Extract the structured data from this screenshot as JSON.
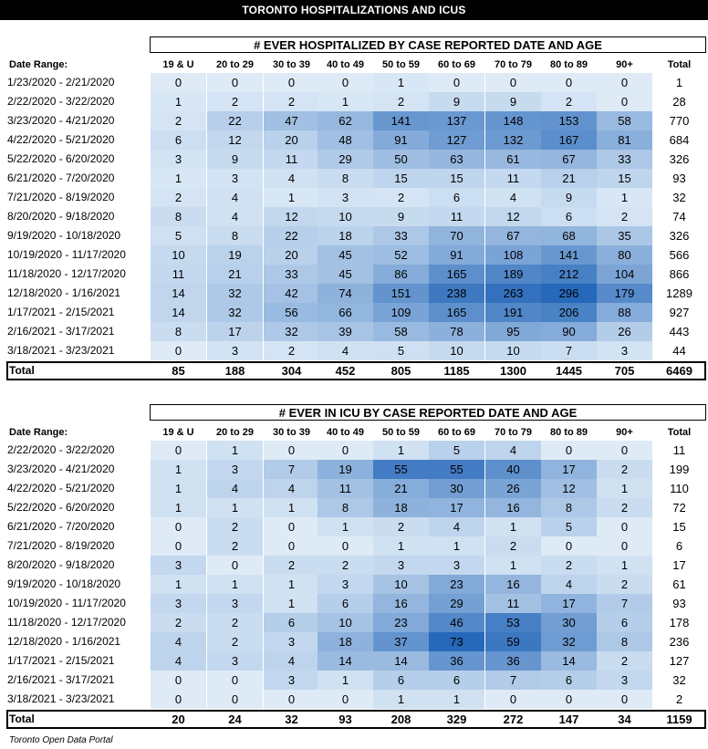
{
  "banner": "TORONTO HOSPITALIZATIONS AND ICUS",
  "source": "Toronto Open Data Portal",
  "chart_data": [
    {
      "type": "heatmap",
      "title": "# EVER HOSPITALIZED BY CASE REPORTED DATE AND AGE",
      "row_header": "Date Range:",
      "columns": [
        "19 & U",
        "20 to 29",
        "30 to 39",
        "40 to 49",
        "50 to 59",
        "60 to 69",
        "70 to 79",
        "80 to 89",
        "90+"
      ],
      "total_header": "Total",
      "rows": [
        {
          "label": "1/23/2020 - 2/21/2020",
          "values": [
            0,
            0,
            0,
            0,
            1,
            0,
            0,
            0,
            0
          ],
          "total": 1
        },
        {
          "label": "2/22/2020 - 3/22/2020",
          "values": [
            1,
            2,
            2,
            1,
            2,
            9,
            9,
            2,
            0
          ],
          "total": 28
        },
        {
          "label": "3/23/2020 - 4/21/2020",
          "values": [
            2,
            22,
            47,
            62,
            141,
            137,
            148,
            153,
            58
          ],
          "total": 770
        },
        {
          "label": "4/22/2020 - 5/21/2020",
          "values": [
            6,
            12,
            20,
            48,
            91,
            127,
            132,
            167,
            81
          ],
          "total": 684
        },
        {
          "label": "5/22/2020 - 6/20/2020",
          "values": [
            3,
            9,
            11,
            29,
            50,
            63,
            61,
            67,
            33
          ],
          "total": 326
        },
        {
          "label": "6/21/2020 - 7/20/2020",
          "values": [
            1,
            3,
            4,
            8,
            15,
            15,
            11,
            21,
            15
          ],
          "total": 93
        },
        {
          "label": "7/21/2020 - 8/19/2020",
          "values": [
            2,
            4,
            1,
            3,
            2,
            6,
            4,
            9,
            1
          ],
          "total": 32
        },
        {
          "label": "8/20/2020 - 9/18/2020",
          "values": [
            8,
            4,
            12,
            10,
            9,
            11,
            12,
            6,
            2
          ],
          "total": 74
        },
        {
          "label": "9/19/2020 - 10/18/2020",
          "values": [
            5,
            8,
            22,
            18,
            33,
            70,
            67,
            68,
            35
          ],
          "total": 326
        },
        {
          "label": "10/19/2020 - 11/17/2020",
          "values": [
            10,
            19,
            20,
            45,
            52,
            91,
            108,
            141,
            80
          ],
          "total": 566
        },
        {
          "label": "11/18/2020 - 12/17/2020",
          "values": [
            11,
            21,
            33,
            45,
            86,
            165,
            189,
            212,
            104
          ],
          "total": 866
        },
        {
          "label": "12/18/2020 - 1/16/2021",
          "values": [
            14,
            32,
            42,
            74,
            151,
            238,
            263,
            296,
            179
          ],
          "total": 1289
        },
        {
          "label": "1/17/2021 - 2/15/2021",
          "values": [
            14,
            32,
            56,
            66,
            109,
            165,
            191,
            206,
            88
          ],
          "total": 927
        },
        {
          "label": "2/16/2021 - 3/17/2021",
          "values": [
            8,
            17,
            32,
            39,
            58,
            78,
            95,
            90,
            26
          ],
          "total": 443
        },
        {
          "label": "3/18/2021 - 3/23/2021",
          "values": [
            0,
            3,
            2,
            4,
            5,
            10,
            10,
            7,
            3
          ],
          "total": 44
        }
      ],
      "totals": {
        "label": "Total",
        "values": [
          85,
          188,
          304,
          452,
          805,
          1185,
          1300,
          1445,
          705
        ],
        "total": 6469
      }
    },
    {
      "type": "heatmap",
      "title": "# EVER IN ICU BY CASE REPORTED DATE AND AGE",
      "row_header": "Date Range:",
      "columns": [
        "19 & U",
        "20 to 29",
        "30 to 39",
        "40 to 49",
        "50 to 59",
        "60 to 69",
        "70 to 79",
        "80 to 89",
        "90+"
      ],
      "total_header": "Total",
      "rows": [
        {
          "label": "2/22/2020 - 3/22/2020",
          "values": [
            0,
            1,
            0,
            0,
            1,
            5,
            4,
            0,
            0
          ],
          "total": 11
        },
        {
          "label": "3/23/2020 - 4/21/2020",
          "values": [
            1,
            3,
            7,
            19,
            55,
            55,
            40,
            17,
            2
          ],
          "total": 199
        },
        {
          "label": "4/22/2020 - 5/21/2020",
          "values": [
            1,
            4,
            4,
            11,
            21,
            30,
            26,
            12,
            1
          ],
          "total": 110
        },
        {
          "label": "5/22/2020 - 6/20/2020",
          "values": [
            1,
            1,
            1,
            8,
            18,
            17,
            16,
            8,
            2
          ],
          "total": 72
        },
        {
          "label": "6/21/2020 - 7/20/2020",
          "values": [
            0,
            2,
            0,
            1,
            2,
            4,
            1,
            5,
            0
          ],
          "total": 15
        },
        {
          "label": "7/21/2020 - 8/19/2020",
          "values": [
            0,
            2,
            0,
            0,
            1,
            1,
            2,
            0,
            0
          ],
          "total": 6
        },
        {
          "label": "8/20/2020 - 9/18/2020",
          "values": [
            3,
            0,
            2,
            2,
            3,
            3,
            1,
            2,
            1
          ],
          "total": 17
        },
        {
          "label": "9/19/2020 - 10/18/2020",
          "values": [
            1,
            1,
            1,
            3,
            10,
            23,
            16,
            4,
            2
          ],
          "total": 61
        },
        {
          "label": "10/19/2020 - 11/17/2020",
          "values": [
            3,
            3,
            1,
            6,
            16,
            29,
            11,
            17,
            7
          ],
          "total": 93
        },
        {
          "label": "11/18/2020 - 12/17/2020",
          "values": [
            2,
            2,
            6,
            10,
            23,
            46,
            53,
            30,
            6
          ],
          "total": 178
        },
        {
          "label": "12/18/2020 - 1/16/2021",
          "values": [
            4,
            2,
            3,
            18,
            37,
            73,
            59,
            32,
            8
          ],
          "total": 236
        },
        {
          "label": "1/17/2021 - 2/15/2021",
          "values": [
            4,
            3,
            4,
            14,
            14,
            36,
            36,
            14,
            2
          ],
          "total": 127
        },
        {
          "label": "2/16/2021 - 3/17/2021",
          "values": [
            0,
            0,
            3,
            1,
            6,
            6,
            7,
            6,
            3
          ],
          "total": 32
        },
        {
          "label": "3/18/2021 - 3/23/2021",
          "values": [
            0,
            0,
            0,
            0,
            1,
            1,
            0,
            0,
            0
          ],
          "total": 2
        }
      ],
      "totals": {
        "label": "Total",
        "values": [
          20,
          24,
          32,
          93,
          208,
          329,
          272,
          147,
          34
        ],
        "total": 1159
      }
    }
  ]
}
